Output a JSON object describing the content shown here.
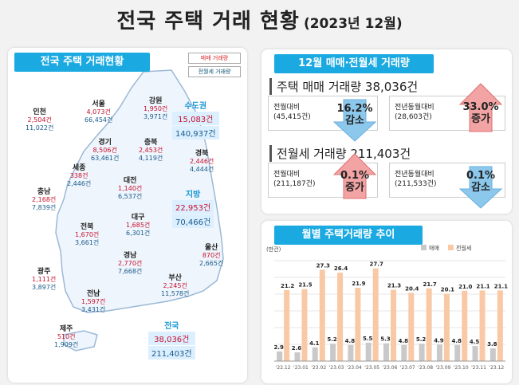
{
  "page": {
    "title": "전국 주택 거래 현황",
    "date": "(2023년 12월)"
  },
  "map_panel": {
    "header": "전국 주택 거래현황",
    "legend_sales": "매매 거래량",
    "legend_rent": "전월세 거래량",
    "regions": [
      {
        "key": "seoul",
        "name": "서울",
        "sales": "4,073건",
        "rent": "66,454건"
      },
      {
        "key": "gangwon",
        "name": "강원",
        "sales": "1,950건",
        "rent": "3,971건"
      },
      {
        "key": "incheon",
        "name": "인천",
        "sales": "2,504건",
        "rent": "11,022건"
      },
      {
        "key": "gyeonggi",
        "name": "경기",
        "sales": "8,506건",
        "rent": "63,461건"
      },
      {
        "key": "chungbuk",
        "name": "충북",
        "sales": "2,453건",
        "rent": "4,119건"
      },
      {
        "key": "gyeongbuk",
        "name": "경북",
        "sales": "2,446건",
        "rent": "4,444건"
      },
      {
        "key": "sejong",
        "name": "세종",
        "sales": "338건",
        "rent": "2,446건"
      },
      {
        "key": "daejeon",
        "name": "대전",
        "sales": "1,140건",
        "rent": "6,537건"
      },
      {
        "key": "chungnam",
        "name": "충남",
        "sales": "2,168건",
        "rent": "7,839건"
      },
      {
        "key": "daegu",
        "name": "대구",
        "sales": "1,685건",
        "rent": "6,301건"
      },
      {
        "key": "jeonbuk",
        "name": "전북",
        "sales": "1,670건",
        "rent": "3,661건"
      },
      {
        "key": "ulsan",
        "name": "울산",
        "sales": "870건",
        "rent": "2,665건"
      },
      {
        "key": "gyeongnam",
        "name": "경남",
        "sales": "2,770건",
        "rent": "7,668건"
      },
      {
        "key": "gwangju",
        "name": "광주",
        "sales": "1,111건",
        "rent": "3,897건"
      },
      {
        "key": "busan",
        "name": "부산",
        "sales": "2,245건",
        "rent": "11,578건"
      },
      {
        "key": "jeonnam",
        "name": "전남",
        "sales": "1,597건",
        "rent": "3,431건"
      },
      {
        "key": "jeju",
        "name": "제주",
        "sales": "510건",
        "rent": "1,909건"
      }
    ],
    "capital": {
      "name": "수도권",
      "sales": "15,083건",
      "rent": "140,937건"
    },
    "provinces": {
      "name": "지방",
      "sales": "22,953건",
      "rent": "70,466건"
    },
    "nation": {
      "name": "전국",
      "sales": "38,036건",
      "rent": "211,403건"
    }
  },
  "summary_panel": {
    "header": "12월 매매·전월세 거래량",
    "sales_title": "주택 매매 거래량 38,036건",
    "sales_mom_label": "전월대비",
    "sales_mom_base": "(45,415건)",
    "sales_mom_value": "16.2%",
    "sales_mom_dir": "감소",
    "sales_yoy_label": "전년동월대비",
    "sales_yoy_base": "(28,603건)",
    "sales_yoy_value": "33.0%",
    "sales_yoy_dir": "증가",
    "rent_title": "전월세 거래량 211,403건",
    "rent_mom_label": "전월대비",
    "rent_mom_base": "(211,187건)",
    "rent_mom_value": "0.1%",
    "rent_mom_dir": "증가",
    "rent_yoy_label": "전년동월대비",
    "rent_yoy_base": "(211,533건)",
    "rent_yoy_value": "0.1%",
    "rent_yoy_dir": "감소",
    "colors": {
      "up": "#e05a5a",
      "down": "#5aa8e0"
    }
  },
  "chart_panel": {
    "header": "월별 주택거래량 추이"
  },
  "chart_data": {
    "type": "bar",
    "unit": "(만건)",
    "categories": [
      "'22.12",
      "'23.01",
      "'23.02",
      "'23.03",
      "'23.04",
      "'23.05",
      "'23.06",
      "'23.07",
      "'23.08",
      "'23.09",
      "'23.10",
      "'23.11",
      "'23.12"
    ],
    "series": [
      {
        "name": "매매",
        "color": "#c9c9c9",
        "values": [
          2.9,
          2.6,
          4.1,
          5.2,
          4.8,
          5.5,
          5.3,
          4.8,
          5.2,
          4.9,
          4.8,
          4.5,
          3.8
        ]
      },
      {
        "name": "전월세",
        "color": "#f8c9a4",
        "values": [
          21.2,
          21.5,
          27.3,
          26.4,
          21.9,
          27.7,
          21.3,
          20.4,
          21.7,
          20.1,
          21.0,
          21.1,
          21.1
        ]
      }
    ],
    "ylim": [
      0,
      30
    ],
    "grid": true,
    "legend": "top-right"
  }
}
